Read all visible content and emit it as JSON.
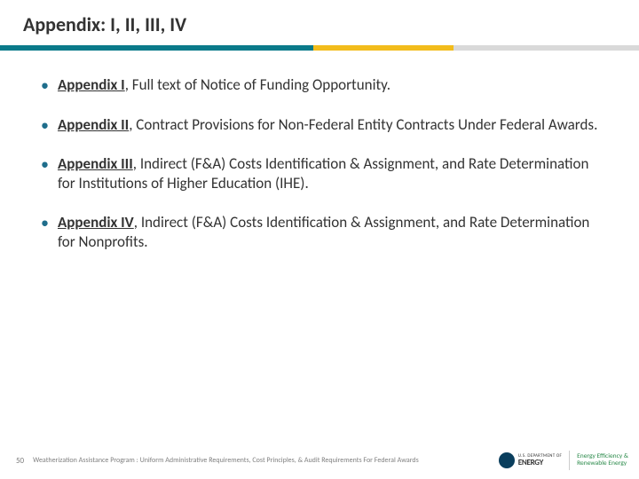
{
  "title": "Appendix: I, II, III, IV",
  "colors": {
    "rule_teal": "#0a7a8a",
    "rule_yellow": "#f2bc1b",
    "rule_gray": "#d9d9d9",
    "text": "#333333",
    "bullet_dot": "#1f6e8c",
    "footer_text": "#808080"
  },
  "bullets": [
    {
      "lead": "Appendix I",
      "rest": ", Full text of Notice of Funding Opportunity."
    },
    {
      "lead": "Appendix II",
      "rest": ", Contract Provisions for Non-Federal Entity Contracts Under Federal Awards."
    },
    {
      "lead": "Appendix III",
      "rest": ", Indirect (F&A) Costs Identification & Assignment, and Rate Determination for Institutions of Higher Education (IHE)."
    },
    {
      "lead": "Appendix IV",
      "rest": ", Indirect (F&A) Costs Identification & Assignment, and Rate Determination for Nonprofits."
    }
  ],
  "footer": {
    "page_number": "50",
    "text": "Weatherization Assistance Program : Uniform Administrative Requirements, Cost Principles, & Audit Requirements For Federal Awards",
    "doe_top": "U.S. DEPARTMENT OF",
    "doe_main": "ENERGY",
    "eere_line1": "Energy Efficiency &",
    "eere_line2": "Renewable Energy"
  }
}
